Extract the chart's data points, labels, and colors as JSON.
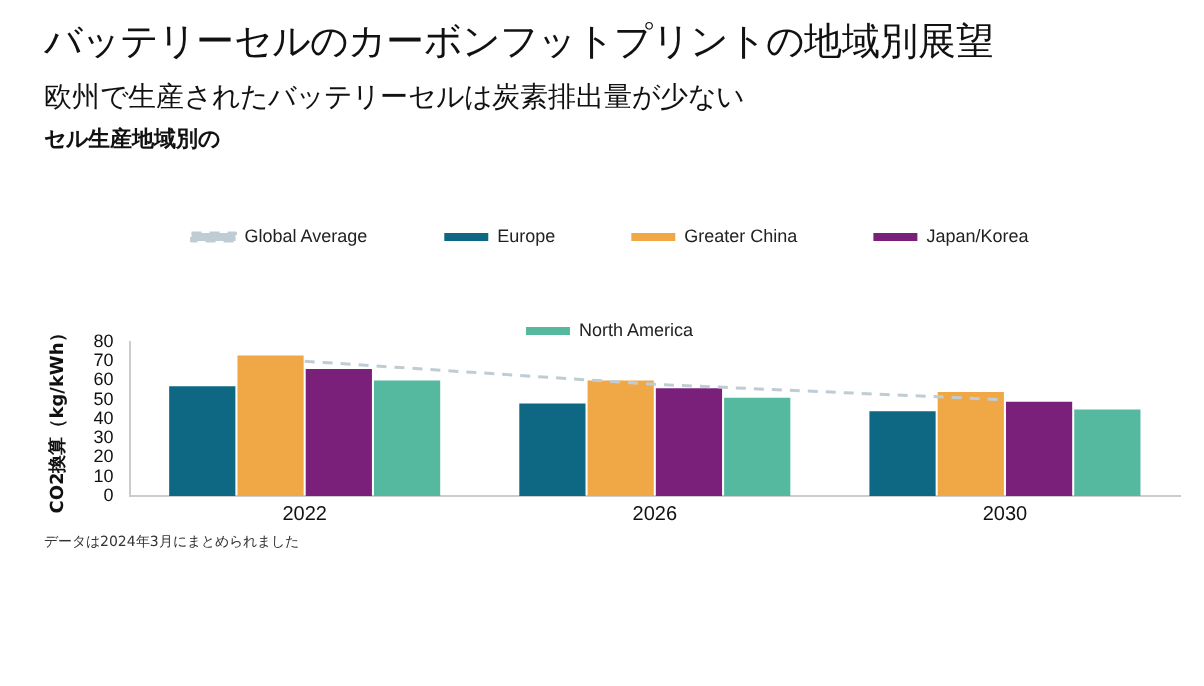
{
  "chart_data": {
    "type": "bar",
    "title": "バッテリーセルのカーボンフットプリントの地域別展望",
    "subtitle": "欧州で生産されたバッテリーセルは炭素排出量が少ない",
    "annotations": [
      "セル生産地域別の",
      "データは2024年3月にまとめられました"
    ],
    "ylabel": "CO2換算（kg/kWh）",
    "categories": [
      "2022",
      "2026",
      "2030"
    ],
    "series": [
      {
        "name": "Europe",
        "color": "#0e6883",
        "values": [
          57,
          48,
          44
        ]
      },
      {
        "name": "Greater China",
        "color": "#f0a846",
        "values": [
          73,
          60,
          54
        ]
      },
      {
        "name": "Japan/Korea",
        "color": "#7a1f7a",
        "values": [
          66,
          56,
          49
        ]
      },
      {
        "name": "North America",
        "color": "#55b9a0",
        "values": [
          60,
          51,
          45
        ]
      },
      {
        "name": "Global Average",
        "color": "#c0ccd4",
        "type": "line",
        "line_style": "dashed",
        "marker": "none",
        "values": [
          70,
          58,
          50
        ]
      }
    ],
    "ylim": [
      0,
      80
    ],
    "yticks": [
      0,
      10,
      20,
      30,
      40,
      50,
      60,
      70,
      80
    ],
    "grid": false,
    "legend": "top"
  }
}
